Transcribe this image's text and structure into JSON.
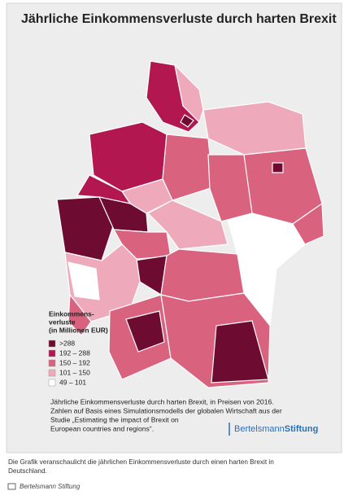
{
  "header": {
    "title": "Jährliche Einkommensverluste durch harten Brexit"
  },
  "legend": {
    "title_lines": [
      "Einkommens-",
      "verluste",
      "(in Millionen EUR)"
    ],
    "items": [
      {
        "label": ">288",
        "color": "#6e0b31"
      },
      {
        "label": "192 – 288",
        "color": "#b3174f"
      },
      {
        "label": "150 – 192",
        "color": "#d9627f"
      },
      {
        "label": "101 – 150",
        "color": "#eeaabb"
      },
      {
        "label": "49 – 101",
        "color": "#ffffff"
      }
    ]
  },
  "description": [
    "Jährliche Einkommensverluste durch harten Brexit, in Preisen von 2016.",
    "Zahlen auf Basis eines Simulationsmodells der globalen Wirtschaft aus der",
    "Studie „Estimating the impact of Brexit on",
    "European countries and regions“."
  ],
  "logo": {
    "part1": "Bertelsmann",
    "part2": "Stiftung"
  },
  "caption": [
    "Die Grafik veranschaulicht die jährlichen Einkommensverluste durch einen harten Brexit in",
    "Deutschland."
  ],
  "credit": "Bertelsmann Stiftung"
}
